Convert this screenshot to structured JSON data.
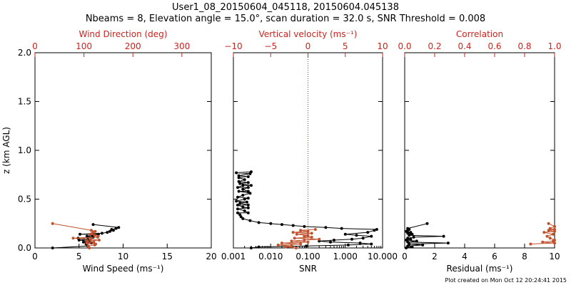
{
  "title_line1": "User1_08_20150604_045118, 20150604.045138",
  "title_line2": "Nbeams = 8, Elevation angle = 15.0°, scan duration = 32.0 s, SNR Threshold = 0.008",
  "footer": "Plot created on Mon Oct 12 20:24:41 2015",
  "colors": {
    "primary": "#000000",
    "secondary": "#cc2222",
    "marker_secondary": "#c0522e"
  },
  "chart_data": [
    {
      "type": "scatter",
      "ylabel": "z (km AGL)",
      "ylim": [
        0,
        2.0
      ],
      "yticks": [
        "0.0",
        "0.5",
        "1.0",
        "1.5",
        "2.0"
      ],
      "bottom_axis": {
        "label": "Wind Speed (ms⁻¹)",
        "xlim": [
          0,
          20
        ],
        "ticks": [
          "0",
          "5",
          "10",
          "15",
          "20"
        ]
      },
      "top_axis": {
        "label": "Wind Direction (deg)",
        "xlim": [
          0,
          360
        ],
        "ticks": [
          "0",
          "100",
          "200",
          "300"
        ]
      },
      "series": [
        {
          "name": "Wind Speed",
          "axis": "bottom",
          "points": [
            [
              2.0,
              0.0
            ],
            [
              6.0,
              0.02
            ],
            [
              5.8,
              0.04
            ],
            [
              6.4,
              0.05
            ],
            [
              5.5,
              0.06
            ],
            [
              6.2,
              0.07
            ],
            [
              5.0,
              0.08
            ],
            [
              6.0,
              0.09
            ],
            [
              4.9,
              0.1
            ],
            [
              6.6,
              0.11
            ],
            [
              5.9,
              0.12
            ],
            [
              6.5,
              0.13
            ],
            [
              7.2,
              0.14
            ],
            [
              5.1,
              0.14
            ],
            [
              7.6,
              0.15
            ],
            [
              8.2,
              0.16
            ],
            [
              8.5,
              0.17
            ],
            [
              8.9,
              0.18
            ],
            [
              8.7,
              0.19
            ],
            [
              9.2,
              0.2
            ],
            [
              9.5,
              0.21
            ],
            [
              6.6,
              0.24
            ]
          ]
        },
        {
          "name": "Wind Direction",
          "axis": "top",
          "points": [
            [
              111,
              0.0
            ],
            [
              109,
              0.02
            ],
            [
              122,
              0.03
            ],
            [
              124,
              0.04
            ],
            [
              106,
              0.05
            ],
            [
              120,
              0.06
            ],
            [
              107,
              0.07
            ],
            [
              131,
              0.08
            ],
            [
              114,
              0.09
            ],
            [
              78,
              0.1
            ],
            [
              128,
              0.11
            ],
            [
              129,
              0.12
            ],
            [
              122,
              0.13
            ],
            [
              113,
              0.14
            ],
            [
              117,
              0.15
            ],
            [
              119,
              0.16
            ],
            [
              123,
              0.17
            ],
            [
              115,
              0.18
            ],
            [
              36,
              0.25
            ]
          ]
        }
      ]
    },
    {
      "type": "line",
      "bottom_axis": {
        "label": "SNR",
        "scale": "log",
        "xlim": [
          0.001,
          10
        ],
        "ticks": [
          "0.001",
          "0.010",
          "0.100",
          "1.000",
          "10.000"
        ]
      },
      "top_axis": {
        "label": "Vertical velocity (ms⁻¹)",
        "xlim": [
          -10,
          10
        ],
        "ticks": [
          "−10",
          "−5",
          "0",
          "5",
          "10"
        ]
      },
      "reference_line": {
        "axis": "top",
        "x": 0,
        "style": "dotted"
      },
      "series": [
        {
          "name": "SNR",
          "axis": "bottom",
          "points": [
            [
              0.003,
              0.0
            ],
            [
              0.0048,
              0.01
            ],
            [
              0.09,
              0.02
            ],
            [
              1.2,
              0.03
            ],
            [
              5.0,
              0.04
            ],
            [
              2.5,
              0.05
            ],
            [
              0.4,
              0.06
            ],
            [
              0.2,
              0.07
            ],
            [
              0.5,
              0.08
            ],
            [
              1.5,
              0.09
            ],
            [
              3.0,
              0.1
            ],
            [
              5.0,
              0.12
            ],
            [
              2.0,
              0.13
            ],
            [
              1.0,
              0.14
            ],
            [
              4.0,
              0.16
            ],
            [
              6.0,
              0.18
            ],
            [
              7.0,
              0.19
            ],
            [
              0.8,
              0.2
            ],
            [
              0.3,
              0.21
            ],
            [
              0.08,
              0.22
            ],
            [
              0.04,
              0.23
            ],
            [
              0.02,
              0.24
            ],
            [
              0.01,
              0.25
            ],
            [
              0.0048,
              0.26
            ],
            [
              0.0028,
              0.28
            ],
            [
              0.0018,
              0.3
            ],
            [
              0.0016,
              0.32
            ],
            [
              0.0015,
              0.34
            ],
            [
              0.0013,
              0.36
            ],
            [
              0.0025,
              0.36
            ],
            [
              0.002,
              0.38
            ],
            [
              0.0013,
              0.4
            ],
            [
              0.0025,
              0.41
            ],
            [
              0.0018,
              0.42
            ],
            [
              0.0013,
              0.44
            ],
            [
              0.0025,
              0.44
            ],
            [
              0.0015,
              0.46
            ],
            [
              0.0023,
              0.47
            ],
            [
              0.0012,
              0.48
            ],
            [
              0.002,
              0.5
            ],
            [
              0.0025,
              0.51
            ],
            [
              0.0013,
              0.52
            ],
            [
              0.0018,
              0.54
            ],
            [
              0.0028,
              0.56
            ],
            [
              0.0014,
              0.58
            ],
            [
              0.0025,
              0.58
            ],
            [
              0.0018,
              0.6
            ],
            [
              0.0025,
              0.62
            ],
            [
              0.0013,
              0.62
            ],
            [
              0.0018,
              0.64
            ],
            [
              0.003,
              0.64
            ],
            [
              0.0015,
              0.66
            ],
            [
              0.0025,
              0.67
            ],
            [
              0.0014,
              0.68
            ],
            [
              0.002,
              0.7
            ],
            [
              0.0014,
              0.72
            ],
            [
              0.0025,
              0.73
            ],
            [
              0.0014,
              0.74
            ],
            [
              0.0028,
              0.76
            ],
            [
              0.0012,
              0.77
            ],
            [
              0.003,
              0.78
            ]
          ]
        },
        {
          "name": "Vertical velocity",
          "axis": "top",
          "points": [
            [
              -1.6,
              0.0
            ],
            [
              -3.0,
              0.01
            ],
            [
              -2.2,
              0.02
            ],
            [
              -4.0,
              0.03
            ],
            [
              -1.0,
              0.04
            ],
            [
              -3.5,
              0.05
            ],
            [
              0.0,
              0.06
            ],
            [
              -2.2,
              0.07
            ],
            [
              -0.5,
              0.08
            ],
            [
              1.5,
              0.09
            ],
            [
              -1.8,
              0.1
            ],
            [
              0.5,
              0.11
            ],
            [
              -0.5,
              0.12
            ],
            [
              0.0,
              0.13
            ],
            [
              -1.5,
              0.14
            ],
            [
              0.5,
              0.15
            ],
            [
              -2.0,
              0.16
            ],
            [
              0.0,
              0.17
            ],
            [
              -1.0,
              0.18
            ],
            [
              1.0,
              0.19
            ]
          ]
        }
      ]
    },
    {
      "type": "scatter",
      "bottom_axis": {
        "label": "Residual (ms⁻¹)",
        "xlim": [
          0,
          10
        ],
        "ticks": [
          "0",
          "2",
          "4",
          "6",
          "8",
          "10"
        ]
      },
      "top_axis": {
        "label": "Correlation",
        "xlim": [
          0,
          1.0
        ],
        "ticks": [
          "0.0",
          "0.2",
          "0.4",
          "0.6",
          "0.8",
          "1.0"
        ]
      },
      "series": [
        {
          "name": "Residual",
          "axis": "bottom",
          "points": [
            [
              0.1,
              0.0
            ],
            [
              0.5,
              0.01
            ],
            [
              0.2,
              0.02
            ],
            [
              1.2,
              0.03
            ],
            [
              0.3,
              0.04
            ],
            [
              2.9,
              0.05
            ],
            [
              0.2,
              0.06
            ],
            [
              0.8,
              0.07
            ],
            [
              0.1,
              0.08
            ],
            [
              0.4,
              0.09
            ],
            [
              0.2,
              0.1
            ],
            [
              0.6,
              0.11
            ],
            [
              2.6,
              0.12
            ],
            [
              0.3,
              0.13
            ],
            [
              0.5,
              0.14
            ],
            [
              0.2,
              0.15
            ],
            [
              0.4,
              0.16
            ],
            [
              0.1,
              0.17
            ],
            [
              0.2,
              0.18
            ],
            [
              0.3,
              0.19
            ],
            [
              0.2,
              0.2
            ],
            [
              1.5,
              0.25
            ]
          ]
        },
        {
          "name": "Correlation",
          "axis": "top",
          "points": [
            [
              0.84,
              0.04
            ],
            [
              1.0,
              0.05
            ],
            [
              0.92,
              0.06
            ],
            [
              0.99,
              0.07
            ],
            [
              1.0,
              0.08
            ],
            [
              0.97,
              0.1
            ],
            [
              0.95,
              0.12
            ],
            [
              0.99,
              0.14
            ],
            [
              0.93,
              0.16
            ],
            [
              1.0,
              0.17
            ],
            [
              0.96,
              0.18
            ],
            [
              1.0,
              0.19
            ],
            [
              0.97,
              0.2
            ],
            [
              1.0,
              0.22
            ],
            [
              0.96,
              0.25
            ]
          ]
        }
      ]
    }
  ]
}
